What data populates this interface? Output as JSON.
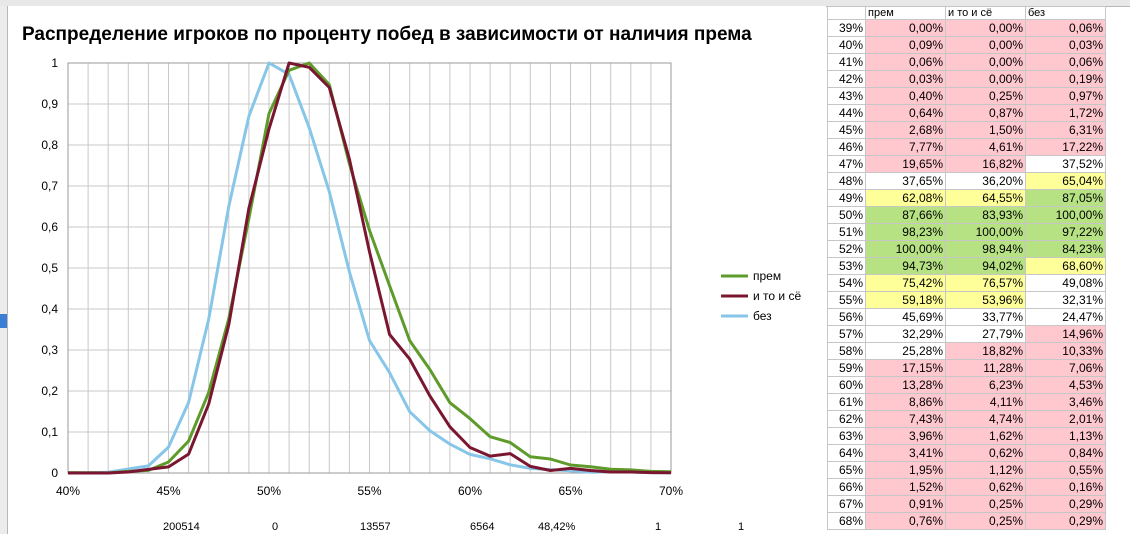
{
  "chart_data": {
    "type": "line",
    "title": "Распределение игроков по проценту побед в зависимости от наличия према",
    "x_tick_labels": [
      "40%",
      "45%",
      "50%",
      "55%",
      "60%",
      "65%",
      "70%"
    ],
    "y_tick_labels": [
      "0",
      "0,1",
      "0,2",
      "0,3",
      "0,4",
      "0,5",
      "0,6",
      "0,7",
      "0,8",
      "0,9",
      "1"
    ],
    "xlim": [
      40,
      70
    ],
    "ylim": [
      0,
      1
    ],
    "grid": true,
    "legend_position": "right",
    "x": [
      40,
      41,
      42,
      43,
      44,
      45,
      46,
      47,
      48,
      49,
      50,
      51,
      52,
      53,
      54,
      55,
      56,
      57,
      58,
      59,
      60,
      61,
      62,
      63,
      64,
      65,
      66,
      67,
      68,
      69,
      70
    ],
    "series": [
      {
        "name": "прем",
        "color": "#5e9b2b",
        "values": [
          0.0009,
          0.0006,
          0.0003,
          0.004,
          0.0064,
          0.0268,
          0.0777,
          0.1965,
          0.3765,
          0.6208,
          0.8766,
          0.9823,
          1.0,
          0.9473,
          0.7542,
          0.5918,
          0.4569,
          0.3229,
          0.2528,
          0.1715,
          0.1328,
          0.0886,
          0.0743,
          0.0396,
          0.0341,
          0.0195,
          0.0152,
          0.0091,
          0.0076,
          0.004,
          0.003
        ]
      },
      {
        "name": "и то и сё",
        "color": "#7a1630",
        "values": [
          0.0,
          0.0,
          0.0,
          0.0025,
          0.0087,
          0.015,
          0.0461,
          0.1682,
          0.362,
          0.6455,
          0.8393,
          1.0,
          0.9894,
          0.9402,
          0.7657,
          0.5396,
          0.3377,
          0.2779,
          0.1882,
          0.1128,
          0.0623,
          0.0411,
          0.0474,
          0.0162,
          0.0062,
          0.0112,
          0.0062,
          0.0025,
          0.0025,
          0.001,
          0.0005
        ]
      },
      {
        "name": "без",
        "color": "#87c6e8",
        "values": [
          0.0003,
          0.0006,
          0.0019,
          0.0097,
          0.0172,
          0.0631,
          0.1722,
          0.3752,
          0.6504,
          0.8705,
          1.0,
          0.9722,
          0.8423,
          0.686,
          0.4908,
          0.3231,
          0.2447,
          0.1496,
          0.1033,
          0.0706,
          0.0453,
          0.0346,
          0.0201,
          0.0113,
          0.0084,
          0.0055,
          0.0016,
          0.0029,
          0.0029,
          0.001,
          0.0005
        ]
      }
    ]
  },
  "below_chart_values": [
    "200514",
    "0",
    "13557",
    "6564",
    "48,42%",
    "1",
    "1"
  ],
  "table": {
    "headers": [
      "прем",
      "и то и сё",
      "без"
    ],
    "rows": [
      {
        "pct": "39%",
        "c": [
          [
            "0,00%",
            "red"
          ],
          [
            "0,00%",
            "red"
          ],
          [
            "0,06%",
            "red"
          ]
        ]
      },
      {
        "pct": "40%",
        "c": [
          [
            "0,09%",
            "red"
          ],
          [
            "0,00%",
            "red"
          ],
          [
            "0,03%",
            "red"
          ]
        ]
      },
      {
        "pct": "41%",
        "c": [
          [
            "0,06%",
            "red"
          ],
          [
            "0,00%",
            "red"
          ],
          [
            "0,06%",
            "red"
          ]
        ]
      },
      {
        "pct": "42%",
        "c": [
          [
            "0,03%",
            "red"
          ],
          [
            "0,00%",
            "red"
          ],
          [
            "0,19%",
            "red"
          ]
        ]
      },
      {
        "pct": "43%",
        "c": [
          [
            "0,40%",
            "red"
          ],
          [
            "0,25%",
            "red"
          ],
          [
            "0,97%",
            "red"
          ]
        ]
      },
      {
        "pct": "44%",
        "c": [
          [
            "0,64%",
            "red"
          ],
          [
            "0,87%",
            "red"
          ],
          [
            "1,72%",
            "red"
          ]
        ]
      },
      {
        "pct": "45%",
        "c": [
          [
            "2,68%",
            "red"
          ],
          [
            "1,50%",
            "red"
          ],
          [
            "6,31%",
            "red"
          ]
        ]
      },
      {
        "pct": "46%",
        "c": [
          [
            "7,77%",
            "red"
          ],
          [
            "4,61%",
            "red"
          ],
          [
            "17,22%",
            "red"
          ]
        ]
      },
      {
        "pct": "47%",
        "c": [
          [
            "19,65%",
            "red"
          ],
          [
            "16,82%",
            "red"
          ],
          [
            "37,52%",
            "white"
          ]
        ]
      },
      {
        "pct": "48%",
        "c": [
          [
            "37,65%",
            "white"
          ],
          [
            "36,20%",
            "white"
          ],
          [
            "65,04%",
            "yellow"
          ]
        ]
      },
      {
        "pct": "49%",
        "c": [
          [
            "62,08%",
            "yellow"
          ],
          [
            "64,55%",
            "yellow"
          ],
          [
            "87,05%",
            "green"
          ]
        ]
      },
      {
        "pct": "50%",
        "c": [
          [
            "87,66%",
            "green"
          ],
          [
            "83,93%",
            "green"
          ],
          [
            "100,00%",
            "green"
          ]
        ]
      },
      {
        "pct": "51%",
        "c": [
          [
            "98,23%",
            "green"
          ],
          [
            "100,00%",
            "green"
          ],
          [
            "97,22%",
            "green"
          ]
        ]
      },
      {
        "pct": "52%",
        "c": [
          [
            "100,00%",
            "green"
          ],
          [
            "98,94%",
            "green"
          ],
          [
            "84,23%",
            "green"
          ]
        ]
      },
      {
        "pct": "53%",
        "c": [
          [
            "94,73%",
            "green"
          ],
          [
            "94,02%",
            "green"
          ],
          [
            "68,60%",
            "yellow"
          ]
        ]
      },
      {
        "pct": "54%",
        "c": [
          [
            "75,42%",
            "yellow"
          ],
          [
            "76,57%",
            "yellow"
          ],
          [
            "49,08%",
            "white"
          ]
        ]
      },
      {
        "pct": "55%",
        "c": [
          [
            "59,18%",
            "yellow"
          ],
          [
            "53,96%",
            "yellow"
          ],
          [
            "32,31%",
            "white"
          ]
        ]
      },
      {
        "pct": "56%",
        "c": [
          [
            "45,69%",
            "white"
          ],
          [
            "33,77%",
            "white"
          ],
          [
            "24,47%",
            "white"
          ]
        ]
      },
      {
        "pct": "57%",
        "c": [
          [
            "32,29%",
            "white"
          ],
          [
            "27,79%",
            "white"
          ],
          [
            "14,96%",
            "red"
          ]
        ]
      },
      {
        "pct": "58%",
        "c": [
          [
            "25,28%",
            "white"
          ],
          [
            "18,82%",
            "red"
          ],
          [
            "10,33%",
            "red"
          ]
        ]
      },
      {
        "pct": "59%",
        "c": [
          [
            "17,15%",
            "red"
          ],
          [
            "11,28%",
            "red"
          ],
          [
            "7,06%",
            "red"
          ]
        ]
      },
      {
        "pct": "60%",
        "c": [
          [
            "13,28%",
            "red"
          ],
          [
            "6,23%",
            "red"
          ],
          [
            "4,53%",
            "red"
          ]
        ]
      },
      {
        "pct": "61%",
        "c": [
          [
            "8,86%",
            "red"
          ],
          [
            "4,11%",
            "red"
          ],
          [
            "3,46%",
            "red"
          ]
        ]
      },
      {
        "pct": "62%",
        "c": [
          [
            "7,43%",
            "red"
          ],
          [
            "4,74%",
            "red"
          ],
          [
            "2,01%",
            "red"
          ]
        ]
      },
      {
        "pct": "63%",
        "c": [
          [
            "3,96%",
            "red"
          ],
          [
            "1,62%",
            "red"
          ],
          [
            "1,13%",
            "red"
          ]
        ]
      },
      {
        "pct": "64%",
        "c": [
          [
            "3,41%",
            "red"
          ],
          [
            "0,62%",
            "red"
          ],
          [
            "0,84%",
            "red"
          ]
        ]
      },
      {
        "pct": "65%",
        "c": [
          [
            "1,95%",
            "red"
          ],
          [
            "1,12%",
            "red"
          ],
          [
            "0,55%",
            "red"
          ]
        ]
      },
      {
        "pct": "66%",
        "c": [
          [
            "1,52%",
            "red"
          ],
          [
            "0,62%",
            "red"
          ],
          [
            "0,16%",
            "red"
          ]
        ]
      },
      {
        "pct": "67%",
        "c": [
          [
            "0,91%",
            "red"
          ],
          [
            "0,25%",
            "red"
          ],
          [
            "0,29%",
            "red"
          ]
        ]
      },
      {
        "pct": "68%",
        "c": [
          [
            "0,76%",
            "red"
          ],
          [
            "0,25%",
            "red"
          ],
          [
            "0,29%",
            "red"
          ]
        ]
      }
    ]
  }
}
